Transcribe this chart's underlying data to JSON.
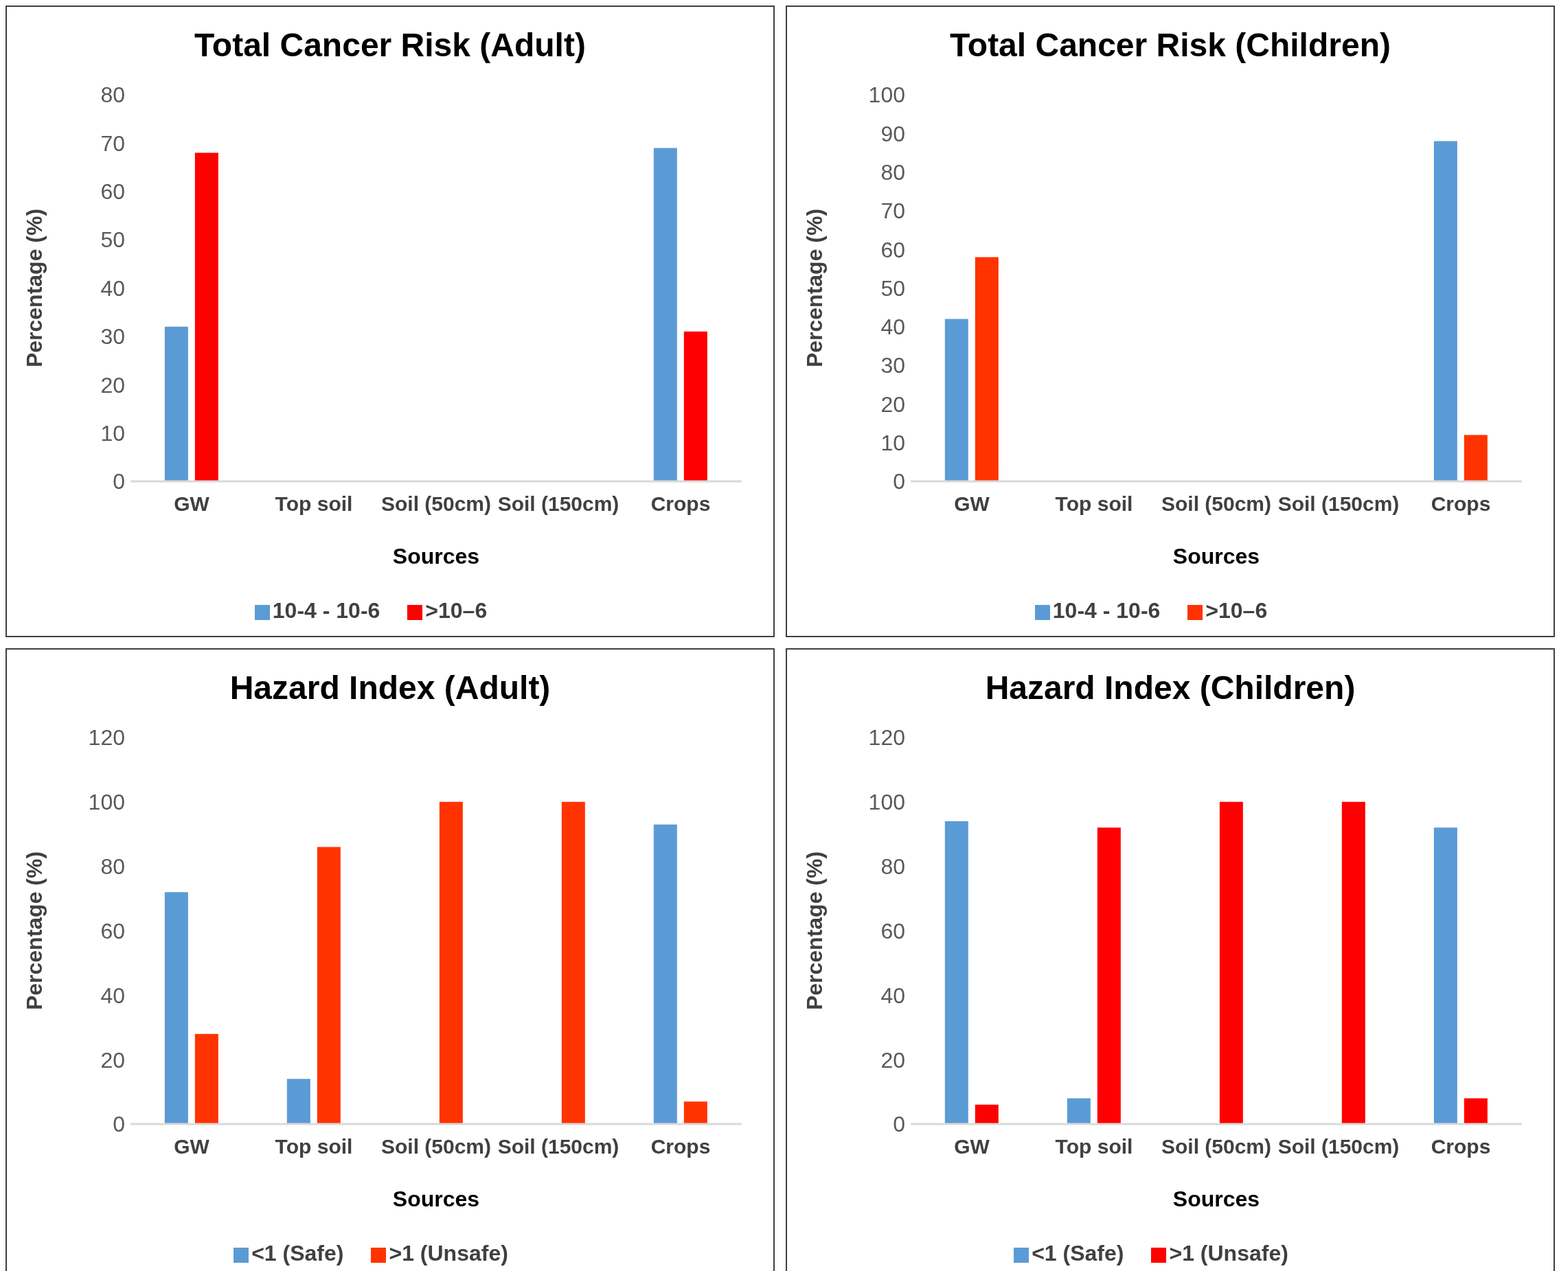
{
  "chart_data": [
    {
      "type": "bar",
      "title": "Total Cancer Risk (Adult)",
      "xlabel": "Sources",
      "ylabel": "Percentage (%)",
      "categories": [
        "GW",
        "Top soil",
        "Soil (50cm)",
        "Soil (150cm)",
        "Crops"
      ],
      "series": [
        {
          "name": "10-4 - 10-6",
          "color": "#5b9bd5",
          "values": [
            32,
            0,
            0,
            0,
            69
          ]
        },
        {
          "name": ">10–6",
          "color": "#ff0000",
          "values": [
            68,
            0,
            0,
            0,
            31
          ]
        }
      ],
      "ylim": [
        0,
        80
      ],
      "yticks": [
        0,
        10,
        20,
        30,
        40,
        50,
        60,
        70,
        80
      ],
      "legend": "bottom"
    },
    {
      "type": "bar",
      "title": "Total Cancer Risk (Children)",
      "xlabel": "Sources",
      "ylabel": "Percentage (%)",
      "categories": [
        "GW",
        "Top soil",
        "Soil (50cm)",
        "Soil (150cm)",
        "Crops"
      ],
      "series": [
        {
          "name": "10-4 - 10-6",
          "color": "#5b9bd5",
          "values": [
            42,
            0,
            0,
            0,
            88
          ]
        },
        {
          "name": ">10–6",
          "color": "#ff3300",
          "values": [
            58,
            0,
            0,
            0,
            12
          ]
        }
      ],
      "ylim": [
        0,
        100
      ],
      "yticks": [
        0,
        10,
        20,
        30,
        40,
        50,
        60,
        70,
        80,
        90,
        100
      ],
      "legend": "bottom"
    },
    {
      "type": "bar",
      "title": "Hazard Index (Adult)",
      "xlabel": "Sources",
      "ylabel": "Percentage (%)",
      "categories": [
        "GW",
        "Top soil",
        "Soil (50cm)",
        "Soil (150cm)",
        "Crops"
      ],
      "series": [
        {
          "name": "<1 (Safe)",
          "color": "#5b9bd5",
          "values": [
            72,
            14,
            0,
            0,
            93
          ]
        },
        {
          "name": ">1 (Unsafe)",
          "color": "#ff3300",
          "values": [
            28,
            86,
            100,
            100,
            7
          ]
        }
      ],
      "ylim": [
        0,
        120
      ],
      "yticks": [
        0,
        20,
        40,
        60,
        80,
        100,
        120
      ],
      "legend": "bottom"
    },
    {
      "type": "bar",
      "title": "Hazard Index (Children)",
      "xlabel": "Sources",
      "ylabel": "Percentage (%)",
      "categories": [
        "GW",
        "Top soil",
        "Soil (50cm)",
        "Soil (150cm)",
        "Crops"
      ],
      "series": [
        {
          "name": "<1 (Safe)",
          "color": "#5b9bd5",
          "values": [
            94,
            8,
            0,
            0,
            92
          ]
        },
        {
          "name": ">1 (Unsafe)",
          "color": "#ff0000",
          "values": [
            6,
            92,
            100,
            100,
            8
          ]
        }
      ],
      "ylim": [
        0,
        120
      ],
      "yticks": [
        0,
        20,
        40,
        60,
        80,
        100,
        120
      ],
      "legend": "bottom"
    }
  ]
}
